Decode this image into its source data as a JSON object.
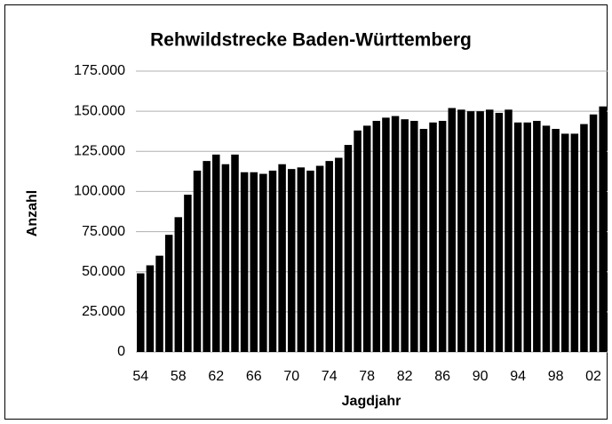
{
  "chart_data": {
    "type": "bar",
    "title": "Rehwildstrecke Baden-Württemberg",
    "xlabel": "Jagdjahr",
    "ylabel": "Anzahl",
    "categories": [
      "54",
      null,
      null,
      null,
      "58",
      null,
      null,
      null,
      "62",
      null,
      null,
      null,
      "66",
      null,
      null,
      null,
      "70",
      null,
      null,
      null,
      "74",
      null,
      null,
      null,
      "78",
      null,
      null,
      null,
      "82",
      null,
      null,
      null,
      "86",
      null,
      null,
      null,
      "90",
      null,
      null,
      null,
      "94",
      null,
      null,
      null,
      "98",
      null,
      null,
      null,
      "02",
      null
    ],
    "values": [
      49000,
      54000,
      60000,
      73000,
      84000,
      98000,
      113000,
      119000,
      123000,
      117000,
      123000,
      112000,
      112000,
      111000,
      113000,
      117000,
      114000,
      115000,
      113000,
      116000,
      119000,
      121000,
      129000,
      138000,
      141000,
      144000,
      146000,
      147000,
      145000,
      144000,
      139000,
      143000,
      144000,
      152000,
      151000,
      150000,
      150000,
      151000,
      149000,
      151000,
      143000,
      143000,
      144000,
      141000,
      139000,
      136000,
      136000,
      142000,
      148000,
      153000
    ],
    "color": "#000000",
    "ylim": [
      0,
      175000
    ],
    "yticks": [
      0,
      {
        "value": 25000,
        "label": "25.000"
      },
      {
        "value": 50000,
        "label": "50.000"
      },
      {
        "value": 75000,
        "label": "75.000"
      },
      {
        "value": 100000,
        "label": "100.000"
      },
      {
        "value": 125000,
        "label": "125.000"
      },
      {
        "value": 150000,
        "label": "150.000"
      },
      {
        "value": 175000,
        "label": "175.000"
      }
    ],
    "grid": true
  }
}
